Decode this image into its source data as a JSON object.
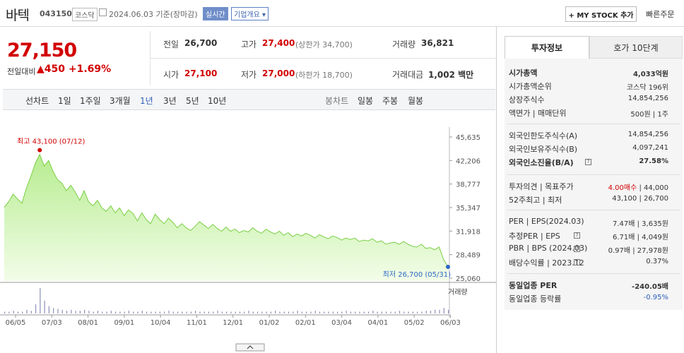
{
  "header": {
    "name": "바텍",
    "code": "043150",
    "market": "코스닥",
    "date": "2024.06.03  기준(장마감)",
    "live": "실시간",
    "corp": "기업개요 ▾",
    "mystock": "+ MY STOCK 추가",
    "quick": "빠른주문"
  },
  "price": {
    "current": "27,150",
    "change_label": "전일대비",
    "change": "▲450  +1.69%"
  },
  "stats": {
    "prev_label": "전일",
    "prev": "26,700",
    "high_label": "고가",
    "high": "27,400",
    "upper": "(상한가 34,700)",
    "vol_label": "거래량",
    "vol": "36,821",
    "open_label": "시가",
    "open": "27,100",
    "low_label": "저가",
    "low": "27,000",
    "lower": "(하한가 18,700)",
    "amt_label": "거래대금",
    "amt": "1,002 백만"
  },
  "tabs": {
    "line": "선차트",
    "periods": [
      "1일",
      "1주일",
      "3개월",
      "1년",
      "3년",
      "5년",
      "10년"
    ],
    "candle": "봉차트",
    "candle_periods": [
      "일봉",
      "주봉",
      "월봉"
    ]
  },
  "chart_data": {
    "type": "area",
    "ylim": [
      25060,
      45635
    ],
    "yticks": [
      "45,635",
      "42,206",
      "38,777",
      "35,347",
      "31,918",
      "28,489",
      "25,060"
    ],
    "xticks": [
      "06/05",
      "07/03",
      "08/01",
      "09/01",
      "10/04",
      "11/01",
      "12/01",
      "01/02",
      "02/01",
      "03/04",
      "04/01",
      "05/02",
      "06/03"
    ],
    "high_label": "최고 43,100 (07/12)",
    "low_label": "최저 26,700 (05/31)",
    "volume_label": "거래량",
    "values": [
      35400,
      36200,
      37300,
      36600,
      36000,
      38200,
      39900,
      41800,
      43100,
      41400,
      42200,
      40600,
      39400,
      38900,
      37800,
      38600,
      37600,
      36400,
      37800,
      36200,
      35600,
      36400,
      35300,
      34800,
      35600,
      34600,
      35300,
      34200,
      35000,
      34500,
      33400,
      34600,
      33600,
      33000,
      34400,
      33600,
      33000,
      33800,
      33200,
      32400,
      33000,
      32400,
      32000,
      32600,
      33300,
      32800,
      32300,
      32900,
      32300,
      31900,
      32500,
      31900,
      32200,
      31700,
      32000,
      31800,
      32400,
      31900,
      31600,
      32200,
      31800,
      31500,
      31900,
      31300,
      31700,
      31100,
      31500,
      31200,
      31600,
      31300,
      30900,
      31400,
      31100,
      30800,
      31200,
      31000,
      30600,
      30900,
      30700,
      30900,
      30400,
      30600,
      30500,
      30800,
      30300,
      30500,
      30000,
      30200,
      30300,
      30000,
      30400,
      30000,
      29700,
      29600,
      30000,
      29400,
      29500,
      29200,
      29600,
      27800,
      26700
    ],
    "volume": [
      2,
      2,
      3,
      2,
      2,
      4,
      3,
      10,
      28,
      14,
      8,
      6,
      5,
      4,
      3,
      4,
      3,
      3,
      4,
      3,
      2,
      3,
      2,
      2,
      3,
      2,
      2,
      2,
      3,
      2,
      2,
      3,
      2,
      2,
      2,
      2,
      2,
      3,
      2,
      2,
      2,
      2,
      2,
      3,
      2,
      2,
      2,
      2,
      3,
      2,
      2,
      2,
      2,
      2,
      2,
      3,
      2,
      2,
      2,
      2,
      2,
      3,
      2,
      2,
      2,
      2,
      3,
      2,
      2,
      2,
      3,
      2,
      2,
      2,
      2,
      2,
      2,
      3,
      2,
      2,
      2,
      2,
      2,
      3,
      2,
      2,
      2,
      2,
      2,
      3,
      2,
      2,
      2,
      2,
      2,
      3,
      3,
      4,
      4,
      6,
      4
    ]
  },
  "right": {
    "tab_a": "투자정보",
    "tab_b": "호가 10단계",
    "rows": [
      {
        "l": "시가총액",
        "v": "4,033억원",
        "b": true
      },
      {
        "l": "시가총액순위",
        "v": "코스닥 196위"
      },
      {
        "l": "상장주식수",
        "v": "14,854,256"
      },
      {
        "l": "액면가 | 매매단위",
        "v": "500원 | 1주"
      },
      {
        "l": "외국인한도주식수(A)",
        "v": "14,854,256"
      },
      {
        "l": "외국인보유주식수(B)",
        "v": "4,097,241"
      },
      {
        "l": "외국인소진율(B/A)",
        "v": "27.58%",
        "b": true
      },
      {
        "l": "투자의견 | 목표주가",
        "v1": "4.00매수",
        "v2": " | 44,000"
      },
      {
        "l": "52주최고 | 최저",
        "v": "43,100 | 26,700"
      },
      {
        "l": "PER | EPS(2024.03)",
        "v": "7.47배 | 3,635원"
      },
      {
        "l": "추정PER | EPS",
        "v": "6.71배 | 4,049원"
      },
      {
        "l": "PBR | BPS (2024.03)",
        "v": "0.97배 | 27,978원"
      },
      {
        "l": "배당수익률 | 2023.12",
        "v": "0.37%"
      },
      {
        "l": "동일업종 PER",
        "v": "-240.05배",
        "b": true
      },
      {
        "l": "동일업종 등락률",
        "v": "-0.95%"
      }
    ]
  }
}
